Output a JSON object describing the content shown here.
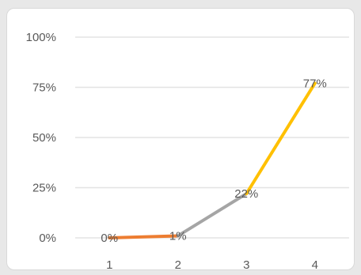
{
  "chart_data": {
    "type": "line",
    "categories": [
      "1",
      "2",
      "3",
      "4"
    ],
    "series": [
      {
        "values": [
          0,
          1,
          22,
          77
        ],
        "data_labels": [
          "0%",
          "1%",
          "22%",
          "77%"
        ],
        "segment_colors": [
          "#ed7d31",
          "#a5a5a5",
          "#ffc000"
        ]
      }
    ],
    "y_ticks": [
      "0%",
      "25%",
      "50%",
      "75%",
      "100%"
    ],
    "ylim": [
      0,
      100
    ],
    "grid": true,
    "title": "",
    "xlabel": "",
    "ylabel": ""
  }
}
